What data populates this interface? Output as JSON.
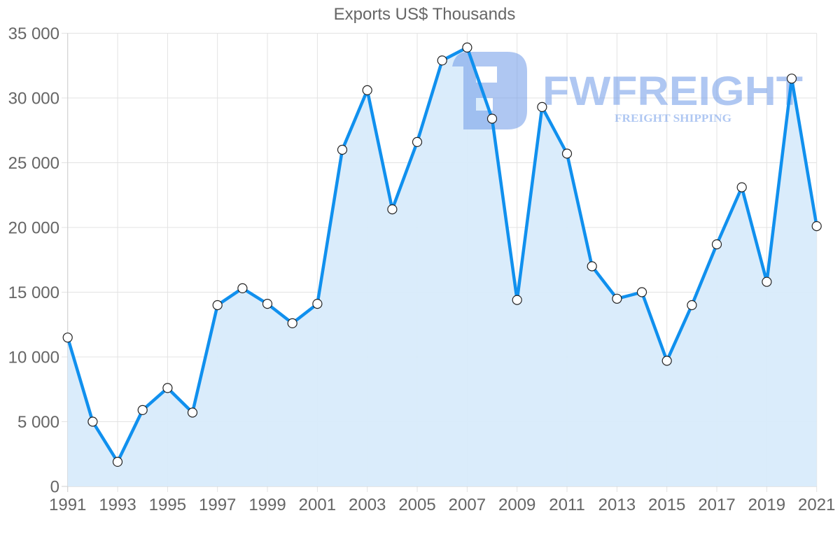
{
  "chart_data": {
    "type": "line",
    "title": "Exports US$ Thousands",
    "xlabel": "",
    "ylabel": "",
    "x": [
      1991,
      1992,
      1993,
      1994,
      1995,
      1996,
      1997,
      1998,
      1999,
      2000,
      2001,
      2002,
      2003,
      2004,
      2005,
      2006,
      2007,
      2008,
      2009,
      2010,
      2011,
      2012,
      2013,
      2014,
      2015,
      2016,
      2017,
      2018,
      2019,
      2020,
      2021
    ],
    "series": [
      {
        "name": "Exports US$ Thousands",
        "values": [
          11500,
          5000,
          1900,
          5900,
          7600,
          5700,
          14000,
          15300,
          14100,
          12600,
          14100,
          26000,
          30600,
          21400,
          26600,
          32900,
          33900,
          28400,
          14400,
          29300,
          25700,
          17000,
          14500,
          15000,
          9700,
          14000,
          18700,
          23100,
          15800,
          31500,
          20100
        ],
        "line_color": "#1090EE",
        "fill_color": "#D8EBFB",
        "marker": "white-circle"
      }
    ],
    "x_tick_labels": [
      "1991",
      "1993",
      "1995",
      "1997",
      "1999",
      "2001",
      "2003",
      "2005",
      "2007",
      "2009",
      "2011",
      "2013",
      "2015",
      "2017",
      "2019",
      "2021"
    ],
    "y_tick_labels": [
      "0",
      "5 000",
      "10 000",
      "15 000",
      "20 000",
      "25 000",
      "30 000",
      "35 000"
    ],
    "y_ticks": [
      0,
      5000,
      10000,
      15000,
      20000,
      25000,
      30000,
      35000
    ],
    "ylim": [
      0,
      35000
    ],
    "xlim": [
      1991,
      2021
    ],
    "grid": true,
    "legend": "none",
    "filled_area": true
  },
  "watermark": {
    "brand": "FWFREIGHT",
    "tagline": "FREIGHT SHIPPING",
    "color": "#6F9BE8"
  }
}
